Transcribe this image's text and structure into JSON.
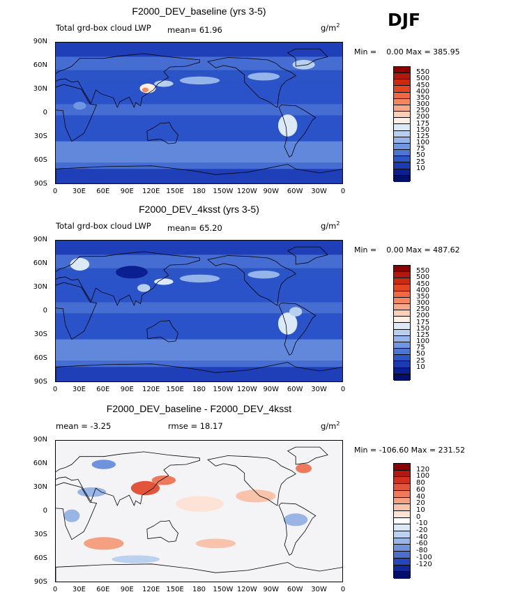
{
  "season": "DJF",
  "lat_labels": [
    "90N",
    "60N",
    "30N",
    "0",
    "30S",
    "60S",
    "90S"
  ],
  "lon_labels": [
    "0",
    "30E",
    "60E",
    "90E",
    "120E",
    "150E",
    "180",
    "150W",
    "120W",
    "90W",
    "60W",
    "30W",
    "0"
  ],
  "panels": [
    {
      "title": "F2000_DEV_baseline (yrs 3-5)",
      "subtitle_left": "Total grd-box cloud LWP",
      "mean_text": "mean=   61.96",
      "units": "g/m",
      "units_sup": "2",
      "minmax": "Min =    0.00 Max = 385.95",
      "levels": [
        "550",
        "500",
        "450",
        "400",
        "350",
        "300",
        "250",
        "200",
        "175",
        "150",
        "125",
        "100",
        "75",
        "50",
        "25",
        "10"
      ],
      "colors": [
        "#8b0000",
        "#b2180e",
        "#cc2a10",
        "#e2451f",
        "#ef6844",
        "#f4875f",
        "#f7a78a",
        "#fbcfb5",
        "#fcefe4",
        "#dce9f7",
        "#b8d0f0",
        "#94b4ea",
        "#6f96e0",
        "#4d75d4",
        "#2c55c5",
        "#1b3bb3",
        "#0a1f90",
        "#00106a"
      ],
      "base_color": "#2a52c9"
    },
    {
      "title": "F2000_DEV_4ksst (yrs 3-5)",
      "subtitle_left": "Total grd-box cloud LWP",
      "mean_text": "mean=   65.20",
      "units": "g/m",
      "units_sup": "2",
      "minmax": "Min =    0.00 Max = 487.62",
      "levels": [
        "550",
        "500",
        "450",
        "400",
        "350",
        "300",
        "250",
        "200",
        "175",
        "150",
        "125",
        "100",
        "75",
        "50",
        "25",
        "10"
      ],
      "colors": [
        "#8b0000",
        "#b2180e",
        "#cc2a10",
        "#e2451f",
        "#ef6844",
        "#f4875f",
        "#f7a78a",
        "#fbcfb5",
        "#fcefe4",
        "#dce9f7",
        "#b8d0f0",
        "#94b4ea",
        "#6f96e0",
        "#4d75d4",
        "#2c55c5",
        "#1b3bb3",
        "#0a1f90",
        "#00106a"
      ],
      "base_color": "#2a52c9"
    },
    {
      "title": "F2000_DEV_baseline - F2000_DEV_4ksst",
      "subtitle_left": "mean =   -3.25",
      "subtitle_mid": "rmse =   18.17",
      "units": "g/m",
      "units_sup": "2",
      "minmax": "Min = -106.60 Max = 231.52",
      "levels": [
        "120",
        "100",
        "80",
        "60",
        "40",
        "20",
        "10",
        "0",
        "-10",
        "-20",
        "-40",
        "-60",
        "-80",
        "-100",
        "-120"
      ],
      "colors": [
        "#8b0000",
        "#b2180e",
        "#d0301e",
        "#e2553a",
        "#ef7a5b",
        "#f5a080",
        "#f9c3ab",
        "#fce3d6",
        "#ffffff",
        "#dde8f6",
        "#bcd0ef",
        "#98b5e6",
        "#6f93db",
        "#4b6fcd",
        "#2747b8",
        "#102895",
        "#020e6e"
      ],
      "base_color": "#f4f4f6"
    }
  ]
}
